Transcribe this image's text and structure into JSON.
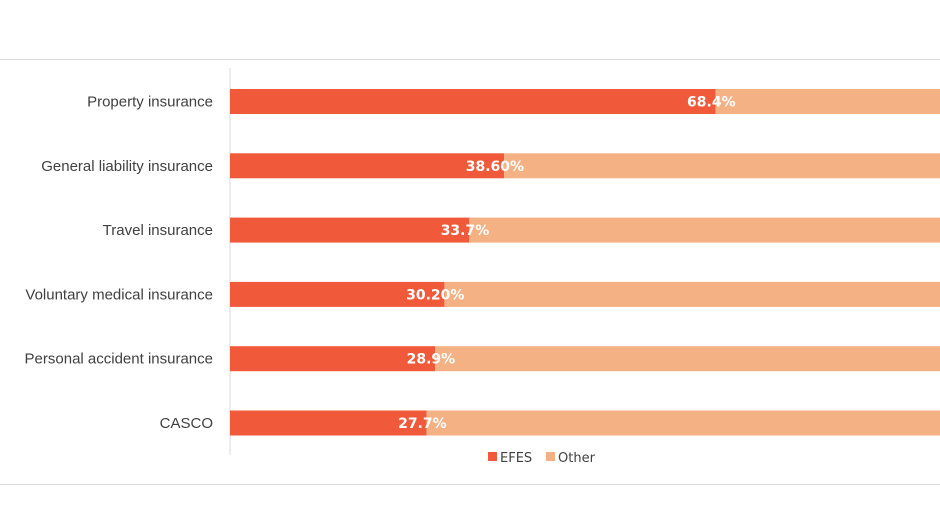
{
  "chart_data": {
    "type": "bar",
    "orientation": "horizontal",
    "stacked": true,
    "percent_stacked": true,
    "categories": [
      "Property insurance",
      "General liability insurance",
      "Travel insurance",
      "Voluntary medical insurance",
      "Personal accident insurance",
      "CASCO"
    ],
    "series": [
      {
        "name": "EFES",
        "values": [
          68.4,
          38.6,
          33.7,
          30.2,
          28.9,
          27.7
        ],
        "labels": [
          "68.4%",
          "38.60%",
          "33.7%",
          "30.20%",
          "28.9%",
          "27.7%"
        ],
        "color": "#f05a3a"
      },
      {
        "name": "Other",
        "values": [
          31.6,
          61.4,
          66.3,
          69.8,
          71.1,
          72.3
        ],
        "color": "#f4b183"
      }
    ],
    "xlim": [
      0,
      100
    ],
    "legend_position": "bottom",
    "grid": false
  }
}
